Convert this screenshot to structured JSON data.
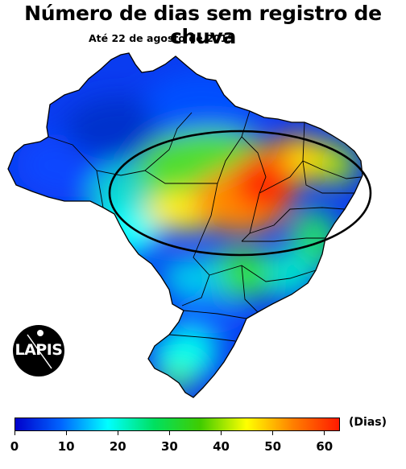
{
  "header": {
    "title": "Número de dias sem registro de chuva",
    "subtitle": "Até 22 de agosto de 2019"
  },
  "legend": {
    "unit": "(Dias)",
    "ticks": [
      "0",
      "10",
      "20",
      "30",
      "40",
      "50",
      "60"
    ],
    "tick_values": [
      0,
      10,
      20,
      30,
      40,
      50,
      60
    ],
    "min": 0,
    "max": 63,
    "colors": [
      "#0000cc",
      "#0066ff",
      "#00ffff",
      "#00e060",
      "#40cc00",
      "#ffff00",
      "#ff8000",
      "#ff1a00"
    ]
  },
  "logo": {
    "text": "LAPIS"
  },
  "map": {
    "region": "Brazil",
    "highlight_shape": "ellipse"
  }
}
